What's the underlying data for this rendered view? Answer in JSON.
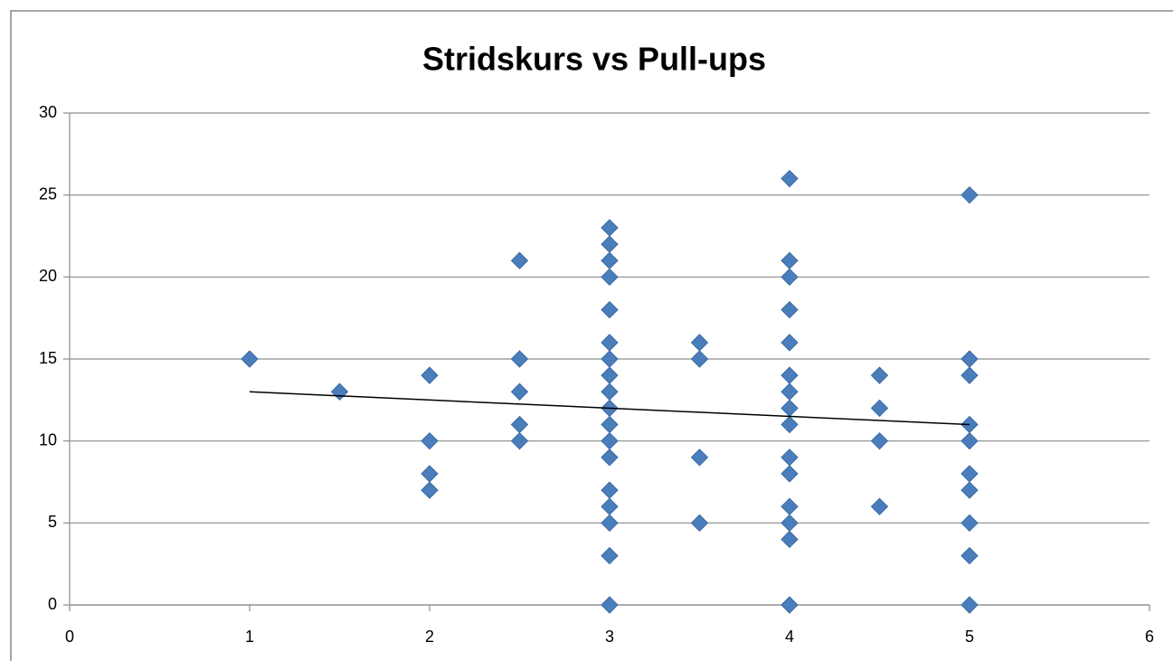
{
  "chart_data": {
    "type": "scatter",
    "title": "Stridskurs vs Pull-ups",
    "x": [
      1,
      1.5,
      2,
      2,
      2,
      2,
      2.5,
      2.5,
      2.5,
      2.5,
      2.5,
      3,
      3,
      3,
      3,
      3,
      3,
      3,
      3,
      3,
      3,
      3,
      3,
      3,
      3,
      3,
      3,
      3,
      3,
      3.5,
      3.5,
      3.5,
      3.5,
      4,
      4,
      4,
      4,
      4,
      4,
      4,
      4,
      4,
      4,
      4,
      4,
      4,
      4,
      4,
      4.5,
      4.5,
      4.5,
      4.5,
      5,
      5,
      5,
      5,
      5,
      5,
      5,
      5,
      5,
      5
    ],
    "values": [
      15,
      13,
      14,
      10,
      8,
      7,
      21,
      15,
      13,
      11,
      10,
      23,
      22,
      21,
      20,
      18,
      16,
      15,
      14,
      13,
      12,
      11,
      10,
      9,
      7,
      6,
      5,
      3,
      0,
      16,
      15,
      9,
      5,
      26,
      21,
      20,
      18,
      16,
      14,
      13,
      12,
      11,
      9,
      8,
      6,
      5,
      4,
      0,
      14,
      12,
      10,
      6,
      25,
      15,
      14,
      11,
      10,
      8,
      7,
      5,
      3,
      0
    ],
    "color": "#4a7ebb",
    "trendline": {
      "x": [
        1,
        5
      ],
      "values": [
        13,
        11
      ],
      "color": "#000000"
    },
    "xlim": [
      0,
      6
    ],
    "xticks": [
      0,
      1,
      2,
      3,
      4,
      5,
      6
    ],
    "ylim": [
      0,
      30
    ],
    "yticks": [
      0,
      5,
      10,
      15,
      20,
      25,
      30
    ],
    "grid": true
  }
}
